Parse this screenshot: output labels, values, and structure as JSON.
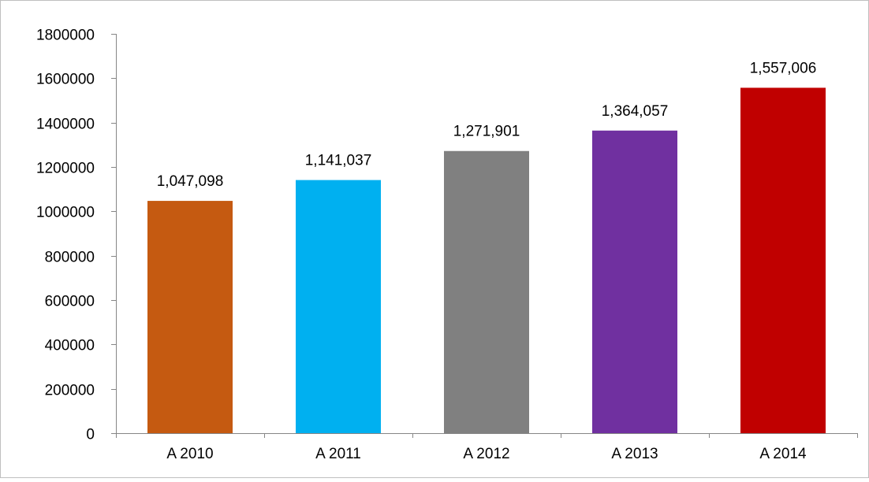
{
  "chart_data": {
    "type": "bar",
    "title": "",
    "xlabel": "",
    "ylabel": "",
    "categories": [
      "A 2010",
      "A 2011",
      "A 2012",
      "A 2013",
      "A 2014"
    ],
    "values": [
      1047098,
      1141037,
      1271901,
      1364057,
      1557006
    ],
    "value_labels": [
      "1,047,098",
      "1,141,037",
      "1,271,901",
      "1,364,057",
      "1,557,006"
    ],
    "colors": [
      "#c55a11",
      "#00b0f0",
      "#808080",
      "#7030a0",
      "#c00000"
    ],
    "ylim": [
      0,
      1800000
    ],
    "yticks": [
      0,
      200000,
      400000,
      600000,
      800000,
      1000000,
      1200000,
      1400000,
      1600000,
      1800000
    ],
    "grid": false,
    "legend": "none"
  }
}
